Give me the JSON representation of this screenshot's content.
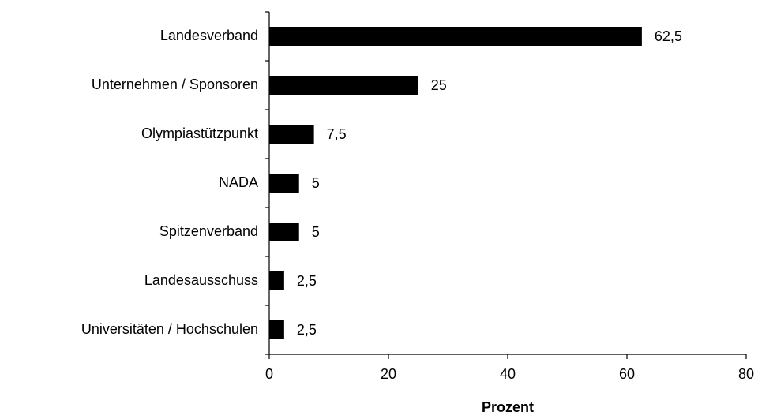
{
  "chart_data": {
    "type": "bar",
    "orientation": "horizontal",
    "categories": [
      "Landesverband",
      "Unternehmen / Sponsoren",
      "Olympiastützpunkt",
      "NADA",
      "Spitzenverband",
      "Landesausschuss",
      "Universitäten / Hochschulen"
    ],
    "values": [
      62.5,
      25,
      7.5,
      5,
      5,
      2.5,
      2.5
    ],
    "value_labels": [
      "62,5",
      "25",
      "7,5",
      "5",
      "5",
      "2,5",
      "2,5"
    ],
    "color": "#000000",
    "xlabel": "Prozent",
    "xlim": [
      0,
      80
    ],
    "xticks": [
      0,
      20,
      40,
      60,
      80
    ],
    "grid": false
  }
}
